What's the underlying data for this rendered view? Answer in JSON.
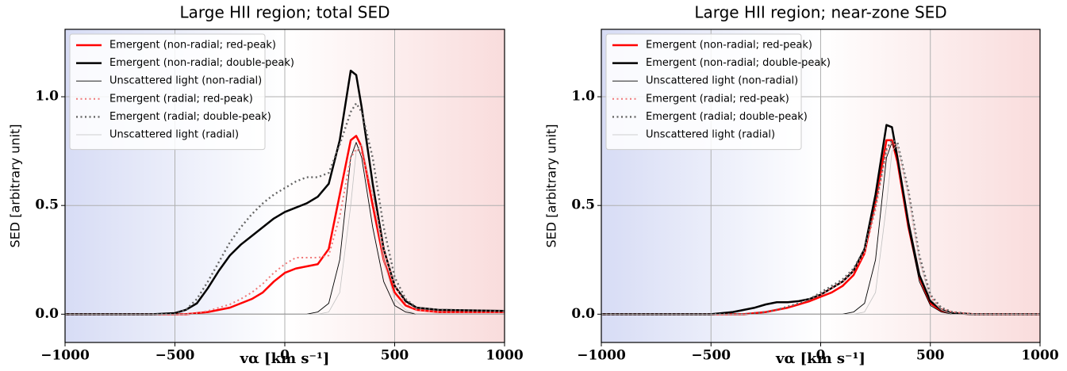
{
  "chart_data": [
    {
      "type": "line",
      "title": "Large HII region; total SED",
      "x_label": "vα [km s⁻¹]",
      "y_label": "SED [arbitrary unit]",
      "x": [
        -1000,
        -600,
        -500,
        -450,
        -400,
        -350,
        -300,
        -250,
        -200,
        -150,
        -100,
        -50,
        0,
        50,
        100,
        150,
        200,
        250,
        300,
        325,
        350,
        400,
        450,
        500,
        550,
        600,
        700,
        1000
      ],
      "xlim": [
        -1000,
        1000
      ],
      "xticks": [
        {
          "value": -1000,
          "label": "−1000"
        },
        {
          "value": -500,
          "label": "−500"
        },
        0,
        500,
        1000
      ],
      "ylim": [
        -0.13,
        1.31
      ],
      "yticks": [
        {
          "value": 0,
          "label": "0.0"
        },
        {
          "value": 0.5,
          "label": "0.5"
        },
        {
          "value": 1,
          "label": "1.0"
        }
      ],
      "grid": true,
      "legend": "upper left",
      "series": [
        {
          "name": "Emergent (non-radial; red-peak)",
          "color": "#ff0000",
          "linewidth": 2.5,
          "linestyle": "solid",
          "values": [
            0,
            0,
            0,
            0,
            0.005,
            0.01,
            0.02,
            0.03,
            0.05,
            0.07,
            0.1,
            0.15,
            0.19,
            0.21,
            0.22,
            0.23,
            0.3,
            0.55,
            0.8,
            0.82,
            0.77,
            0.5,
            0.25,
            0.1,
            0.04,
            0.02,
            0.01,
            0.01
          ]
        },
        {
          "name": "Emergent (non-radial; double-peak)",
          "color": "#000000",
          "linewidth": 2.5,
          "linestyle": "solid",
          "values": [
            0,
            0,
            0.005,
            0.02,
            0.05,
            0.12,
            0.2,
            0.27,
            0.32,
            0.36,
            0.4,
            0.44,
            0.47,
            0.49,
            0.51,
            0.54,
            0.6,
            0.8,
            1.12,
            1.1,
            0.95,
            0.6,
            0.3,
            0.13,
            0.06,
            0.03,
            0.02,
            0.015
          ]
        },
        {
          "name": "Unscattered light (non-radial)",
          "color": "#000000",
          "linewidth": 0.9,
          "linestyle": "solid",
          "values": [
            0,
            0,
            0,
            0,
            0,
            0,
            0,
            0,
            0,
            0,
            0,
            0,
            0,
            0,
            0,
            0.01,
            0.05,
            0.25,
            0.72,
            0.79,
            0.72,
            0.4,
            0.15,
            0.04,
            0.01,
            0,
            0,
            0
          ]
        },
        {
          "name": "Emergent (radial; red-peak)",
          "color": "#f07878",
          "linewidth": 2,
          "linestyle": "dotted",
          "values": [
            0,
            0,
            0,
            0,
            0.005,
            0.015,
            0.03,
            0.045,
            0.07,
            0.1,
            0.14,
            0.19,
            0.23,
            0.26,
            0.26,
            0.26,
            0.27,
            0.45,
            0.72,
            0.76,
            0.74,
            0.55,
            0.3,
            0.13,
            0.05,
            0.02,
            0.01,
            0.01
          ]
        },
        {
          "name": "Emergent (radial; double-peak)",
          "color": "#666666",
          "linewidth": 2.4,
          "linestyle": "dotted",
          "values": [
            0,
            0,
            0,
            0.02,
            0.07,
            0.15,
            0.24,
            0.33,
            0.4,
            0.46,
            0.51,
            0.55,
            0.58,
            0.61,
            0.63,
            0.63,
            0.65,
            0.78,
            0.93,
            0.97,
            0.93,
            0.72,
            0.4,
            0.17,
            0.07,
            0.03,
            0.02,
            0.015
          ]
        },
        {
          "name": "Unscattered light (radial)",
          "color": "#c0c0c0",
          "linewidth": 0.8,
          "linestyle": "solid",
          "values": [
            0,
            0,
            0,
            0,
            0,
            0,
            0,
            0,
            0,
            0,
            0,
            0,
            0,
            0,
            0,
            0,
            0.01,
            0.1,
            0.5,
            0.75,
            0.78,
            0.55,
            0.25,
            0.07,
            0.02,
            0,
            0,
            0
          ]
        }
      ]
    },
    {
      "type": "line",
      "title": "Large HII region; near-zone SED",
      "x_label": "vα [km s⁻¹]",
      "y_label": "SED [arbitrary unit]",
      "x": [
        -1000,
        -600,
        -500,
        -450,
        -400,
        -350,
        -300,
        -250,
        -200,
        -150,
        -100,
        -50,
        0,
        50,
        100,
        150,
        200,
        250,
        300,
        325,
        350,
        400,
        450,
        500,
        550,
        600,
        700,
        1000
      ],
      "xlim": [
        -1000,
        1000
      ],
      "xticks": [
        {
          "value": -1000,
          "label": "−1000"
        },
        {
          "value": -500,
          "label": "−500"
        },
        0,
        500,
        1000
      ],
      "ylim": [
        -0.13,
        1.31
      ],
      "yticks": [
        {
          "value": 0,
          "label": "0.0"
        },
        {
          "value": 0.5,
          "label": "0.5"
        },
        {
          "value": 1,
          "label": "1.0"
        }
      ],
      "grid": true,
      "legend": "upper left",
      "series": [
        {
          "name": "Emergent (non-radial; red-peak)",
          "color": "#ff0000",
          "linewidth": 2.5,
          "linestyle": "solid",
          "values": [
            0,
            0,
            0,
            0,
            0,
            0,
            0.005,
            0.01,
            0.02,
            0.03,
            0.045,
            0.06,
            0.08,
            0.1,
            0.13,
            0.18,
            0.28,
            0.52,
            0.8,
            0.8,
            0.7,
            0.4,
            0.17,
            0.05,
            0.015,
            0.005,
            0,
            0
          ]
        },
        {
          "name": "Emergent (non-radial; double-peak)",
          "color": "#000000",
          "linewidth": 2.5,
          "linestyle": "solid",
          "values": [
            0,
            0,
            0,
            0.005,
            0.01,
            0.02,
            0.03,
            0.045,
            0.055,
            0.055,
            0.06,
            0.07,
            0.09,
            0.12,
            0.15,
            0.2,
            0.3,
            0.55,
            0.87,
            0.86,
            0.72,
            0.42,
            0.18,
            0.06,
            0.02,
            0.005,
            0,
            0
          ]
        },
        {
          "name": "Unscattered light (non-radial)",
          "color": "#000000",
          "linewidth": 0.9,
          "linestyle": "solid",
          "values": [
            0,
            0,
            0,
            0,
            0,
            0,
            0,
            0,
            0,
            0,
            0,
            0,
            0,
            0,
            0,
            0.01,
            0.05,
            0.25,
            0.72,
            0.79,
            0.72,
            0.4,
            0.15,
            0.04,
            0.01,
            0,
            0,
            0
          ]
        },
        {
          "name": "Emergent (radial; red-peak)",
          "color": "#f07878",
          "linewidth": 2,
          "linestyle": "dotted",
          "values": [
            0,
            0,
            0,
            0,
            0,
            0,
            0.005,
            0.01,
            0.02,
            0.035,
            0.05,
            0.07,
            0.09,
            0.12,
            0.15,
            0.2,
            0.28,
            0.48,
            0.75,
            0.79,
            0.77,
            0.55,
            0.25,
            0.08,
            0.025,
            0.01,
            0,
            0
          ]
        },
        {
          "name": "Emergent (radial; double-peak)",
          "color": "#666666",
          "linewidth": 2.4,
          "linestyle": "dotted",
          "values": [
            0,
            0,
            0,
            0,
            0,
            0,
            0.005,
            0.01,
            0.02,
            0.035,
            0.05,
            0.07,
            0.1,
            0.13,
            0.16,
            0.21,
            0.3,
            0.5,
            0.76,
            0.8,
            0.79,
            0.57,
            0.27,
            0.09,
            0.03,
            0.01,
            0,
            0
          ]
        },
        {
          "name": "Unscattered light (radial)",
          "color": "#c0c0c0",
          "linewidth": 0.8,
          "linestyle": "solid",
          "values": [
            0,
            0,
            0,
            0,
            0,
            0,
            0,
            0,
            0,
            0,
            0,
            0,
            0,
            0,
            0,
            0,
            0.01,
            0.1,
            0.5,
            0.75,
            0.78,
            0.55,
            0.25,
            0.07,
            0.02,
            0,
            0,
            0
          ]
        }
      ]
    }
  ]
}
